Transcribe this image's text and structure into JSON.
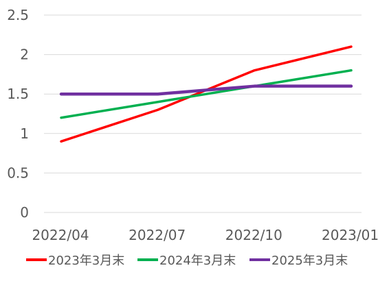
{
  "chart_data": {
    "type": "line",
    "categories": [
      "2022/04",
      "2022/07",
      "2022/10",
      "2023/01"
    ],
    "series": [
      {
        "name": "2023年3月末",
        "color": "#ff0000",
        "values": [
          0.9,
          1.3,
          1.8,
          2.1
        ]
      },
      {
        "name": "2024年3月末",
        "color": "#00b050",
        "values": [
          1.2,
          1.4,
          1.6,
          1.8
        ]
      },
      {
        "name": "2025年3月末",
        "color": "#7030a0",
        "values": [
          1.5,
          1.5,
          1.6,
          1.6
        ]
      }
    ],
    "y_ticks": [
      "0",
      "0.5",
      "1",
      "1.5",
      "2",
      "2.5"
    ],
    "ylim": [
      0,
      2.5
    ],
    "grid": true,
    "legend_position": "bottom",
    "title": "",
    "xlabel": "",
    "ylabel": ""
  }
}
